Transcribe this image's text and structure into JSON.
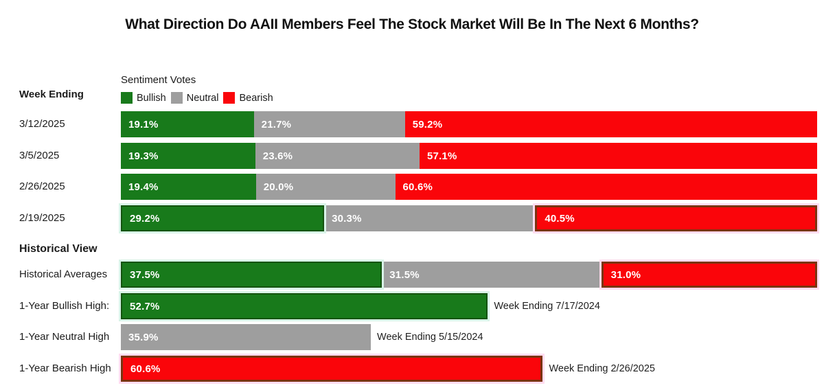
{
  "title": "What Direction Do AAII Members Feel The Stock Market Will Be In The Next 6 Months?",
  "labels": {
    "week_ending": "Week Ending",
    "historical_view": "Historical View"
  },
  "legend": {
    "title": "Sentiment Votes",
    "items": [
      {
        "label": "Bullish",
        "series": "bullish"
      },
      {
        "label": "Neutral",
        "series": "neutral"
      },
      {
        "label": "Bearish",
        "series": "bearish"
      }
    ]
  },
  "colors": {
    "bullish": "#187a1b",
    "neutral": "#9e9e9e",
    "bearish": "#fa050a",
    "bullish_highlight_border": "#14530f",
    "bearish_highlight_border": "#7a3410",
    "bullish_glow": "#d9f3e8",
    "bearish_glow": "#ffdcf0",
    "title_text": "#111111",
    "bar_text": "#ffffff",
    "label_text": "#1c1c1c"
  },
  "chart_data": {
    "type": "bar",
    "orientation": "horizontal",
    "stacked": true,
    "unit": "%",
    "xlim": [
      0,
      100
    ],
    "series_names": [
      "Bullish",
      "Neutral",
      "Bearish"
    ],
    "weekly_rows": [
      {
        "week_ending": "3/12/2025",
        "segments": [
          {
            "series": "bullish",
            "value": 19.1,
            "display": "19.1%",
            "highlighted": false
          },
          {
            "series": "neutral",
            "value": 21.7,
            "display": "21.7%",
            "highlighted": false
          },
          {
            "series": "bearish",
            "value": 59.2,
            "display": "59.2%",
            "highlighted": false
          }
        ]
      },
      {
        "week_ending": "3/5/2025",
        "segments": [
          {
            "series": "bullish",
            "value": 19.3,
            "display": "19.3%",
            "highlighted": false
          },
          {
            "series": "neutral",
            "value": 23.6,
            "display": "23.6%",
            "highlighted": false
          },
          {
            "series": "bearish",
            "value": 57.1,
            "display": "57.1%",
            "highlighted": false
          }
        ]
      },
      {
        "week_ending": "2/26/2025",
        "segments": [
          {
            "series": "bullish",
            "value": 19.4,
            "display": "19.4%",
            "highlighted": false
          },
          {
            "series": "neutral",
            "value": 20.0,
            "display": "20.0%",
            "highlighted": false
          },
          {
            "series": "bearish",
            "value": 60.6,
            "display": "60.6%",
            "highlighted": false
          }
        ]
      },
      {
        "week_ending": "2/19/2025",
        "segments": [
          {
            "series": "bullish",
            "value": 29.2,
            "display": "29.2%",
            "highlighted": true
          },
          {
            "series": "neutral",
            "value": 30.3,
            "display": "30.3%",
            "highlighted": false
          },
          {
            "series": "bearish",
            "value": 40.5,
            "display": "40.5%",
            "highlighted": true
          }
        ]
      }
    ],
    "historical_rows": [
      {
        "label": "Historical Averages",
        "annotation": "",
        "segments": [
          {
            "series": "bullish",
            "value": 37.5,
            "display": "37.5%",
            "highlighted": true
          },
          {
            "series": "neutral",
            "value": 31.5,
            "display": "31.5%",
            "highlighted": false
          },
          {
            "series": "bearish",
            "value": 31.0,
            "display": "31.0%",
            "highlighted": true
          }
        ]
      },
      {
        "label": "1-Year Bullish High:",
        "annotation": "Week Ending 7/17/2024",
        "segments": [
          {
            "series": "bullish",
            "value": 52.7,
            "display": "52.7%",
            "highlighted": true
          }
        ]
      },
      {
        "label": "1-Year Neutral High",
        "annotation": "Week Ending 5/15/2024",
        "segments": [
          {
            "series": "neutral",
            "value": 35.9,
            "display": "35.9%",
            "highlighted": false
          }
        ]
      },
      {
        "label": "1-Year Bearish High",
        "annotation": "Week Ending 2/26/2025",
        "segments": [
          {
            "series": "bearish",
            "value": 60.6,
            "display": "60.6%",
            "highlighted": true
          }
        ]
      }
    ]
  }
}
